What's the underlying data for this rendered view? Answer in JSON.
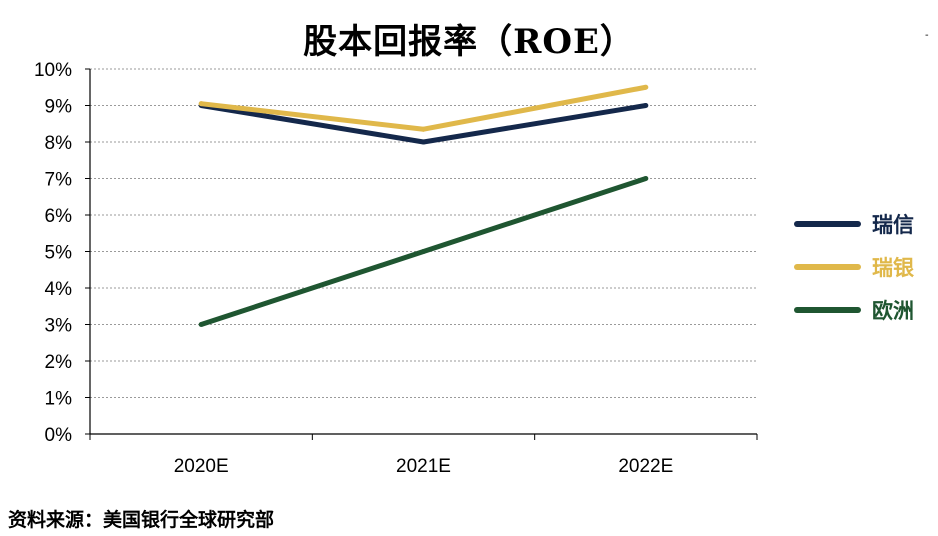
{
  "chart_data": {
    "type": "line",
    "title": "股本回报率（ROE）",
    "categories": [
      "2020E",
      "2021E",
      "2022E"
    ],
    "y_ticks": [
      "0%",
      "1%",
      "2%",
      "3%",
      "4%",
      "5%",
      "6%",
      "7%",
      "8%",
      "9%",
      "10%"
    ],
    "ylim": [
      0,
      10
    ],
    "y_unit": "%",
    "grid": "horizontal dotted",
    "legend_position": "right",
    "series": [
      {
        "name": "瑞信",
        "values": [
          9.0,
          8.0,
          9.0
        ],
        "color": "#14284b"
      },
      {
        "name": "瑞银",
        "values": [
          9.05,
          8.35,
          9.5
        ],
        "color": "#e0b84a"
      },
      {
        "name": "欧洲",
        "values": [
          3.0,
          5.0,
          7.0
        ],
        "color": "#1f5631"
      }
    ]
  },
  "source_note": "资料来源：美国银行全球研究部",
  "corner_mark": "-"
}
